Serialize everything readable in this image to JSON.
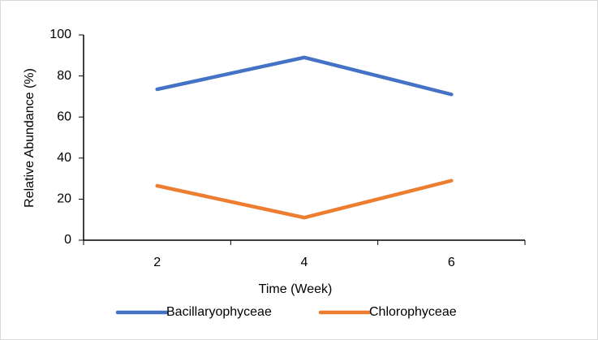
{
  "chart_data": {
    "type": "line",
    "x_label": "Time (Week)",
    "y_label": "Relative Abundance (%)",
    "categories": [
      "2",
      "4",
      "6"
    ],
    "series": [
      {
        "name": "Bacillaryophyceae",
        "color": "#4472c4",
        "values": [
          73.5,
          89,
          71
        ]
      },
      {
        "name": "Chlorophyceae",
        "color": "#ed7d31",
        "values": [
          26.5,
          11,
          29
        ]
      }
    ],
    "ylim": [
      0,
      100
    ],
    "yticks": [
      0,
      20,
      40,
      60,
      80,
      100
    ],
    "grid": false,
    "legend": "bottom"
  }
}
